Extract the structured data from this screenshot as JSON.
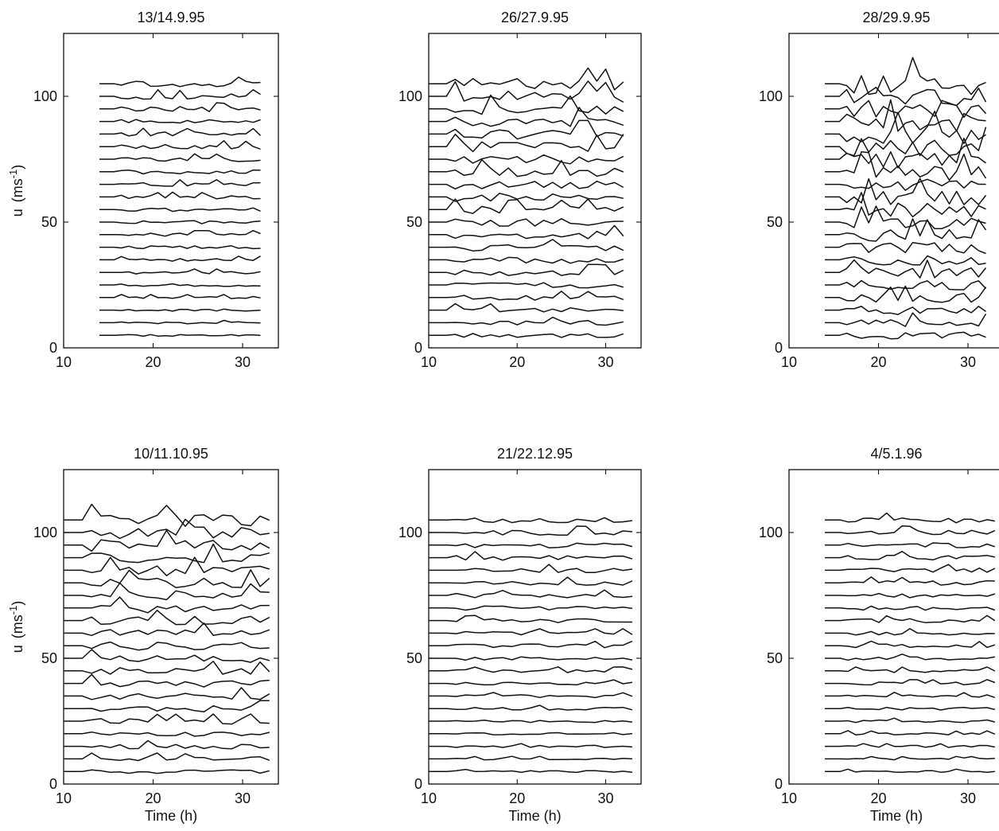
{
  "chart_data": [
    {
      "type": "line",
      "title": "13/14.9.95",
      "xlabel": "",
      "ylabel": "u",
      "ylabel_unit_base": "(ms",
      "ylabel_unit_exp": "-1",
      "ylabel_unit_close": ")",
      "xlim": [
        10,
        34
      ],
      "ylim": [
        0,
        125
      ],
      "xticks": [
        10,
        20,
        30
      ],
      "yticks": [
        0,
        50,
        100
      ],
      "x_range": [
        14,
        32
      ],
      "profile_count": 21,
      "profile_spacing": 5,
      "amplitude": "low"
    },
    {
      "type": "line",
      "title": "26/27.9.95",
      "xlabel": "",
      "ylabel": "",
      "xlim": [
        10,
        34
      ],
      "ylim": [
        0,
        125
      ],
      "xticks": [
        10,
        20,
        30
      ],
      "yticks": [
        0,
        50,
        100
      ],
      "x_range": [
        10,
        32
      ],
      "profile_count": 21,
      "profile_spacing": 5,
      "amplitude": "medium"
    },
    {
      "type": "line",
      "title": "28/29.9.95",
      "xlabel": "",
      "ylabel": "",
      "xlim": [
        10,
        34
      ],
      "ylim": [
        0,
        125
      ],
      "xticks": [
        10,
        20,
        30
      ],
      "yticks": [
        0,
        50,
        100
      ],
      "x_range": [
        14,
        32
      ],
      "profile_count": 21,
      "profile_spacing": 5,
      "amplitude": "high"
    },
    {
      "type": "line",
      "title": "10/11.10.95",
      "xlabel": "Time (h)",
      "ylabel": "u",
      "ylabel_unit_base": "(ms",
      "ylabel_unit_exp": "-1",
      "ylabel_unit_close": ")",
      "xlim": [
        10,
        34
      ],
      "ylim": [
        0,
        125
      ],
      "xticks": [
        10,
        20,
        30
      ],
      "yticks": [
        0,
        50,
        100
      ],
      "x_range": [
        10,
        33
      ],
      "profile_count": 21,
      "profile_spacing": 5,
      "amplitude": "medium"
    },
    {
      "type": "line",
      "title": "21/22.12.95",
      "xlabel": "Time (h)",
      "ylabel": "",
      "xlim": [
        10,
        34
      ],
      "ylim": [
        0,
        125
      ],
      "xticks": [
        10,
        20,
        30
      ],
      "yticks": [
        0,
        50,
        100
      ],
      "x_range": [
        10,
        33
      ],
      "profile_count": 21,
      "profile_spacing": 5,
      "amplitude": "low"
    },
    {
      "type": "line",
      "title": "4/5.1.96",
      "xlabel": "Time (h)",
      "ylabel": "",
      "xlim": [
        10,
        34
      ],
      "ylim": [
        0,
        125
      ],
      "xticks": [
        10,
        20,
        30
      ],
      "yticks": [
        0,
        50,
        100
      ],
      "x_range": [
        14,
        33
      ],
      "profile_count": 21,
      "profile_spacing": 5,
      "amplitude": "low"
    }
  ]
}
